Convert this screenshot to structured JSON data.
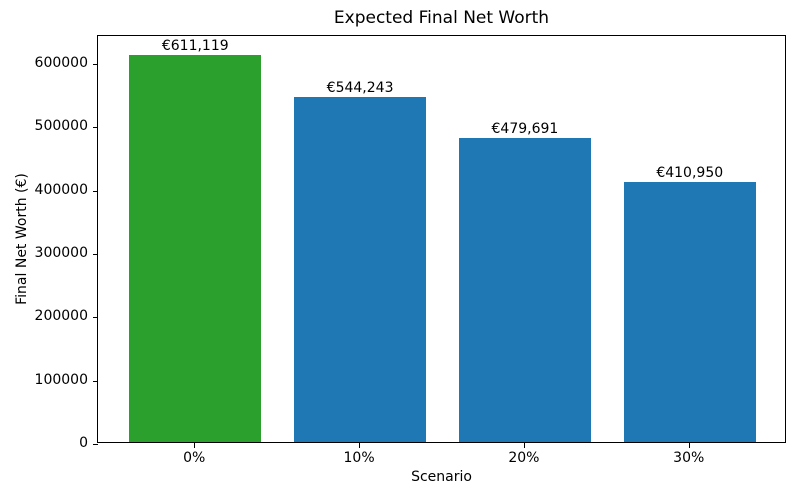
{
  "chart_data": {
    "type": "bar",
    "title": "Expected Final Net Worth",
    "xlabel": "Scenario",
    "ylabel": "Final Net Worth (€)",
    "categories": [
      "0%",
      "10%",
      "20%",
      "30%"
    ],
    "values": [
      611119,
      544243,
      479691,
      410950
    ],
    "bar_labels": [
      "€611,119",
      "€544,243",
      "€479,691",
      "€410,950"
    ],
    "bar_colors": [
      "#2ca02c",
      "#1f77b4",
      "#1f77b4",
      "#1f77b4"
    ],
    "yticks": [
      0,
      100000,
      200000,
      300000,
      400000,
      500000,
      600000
    ],
    "ylim": [
      0,
      644000
    ],
    "grid": false,
    "legend_position": "none",
    "accent_colors": {
      "highlight_green": "#2ca02c",
      "default_blue": "#1f77b4",
      "axis_black": "#000000"
    }
  }
}
